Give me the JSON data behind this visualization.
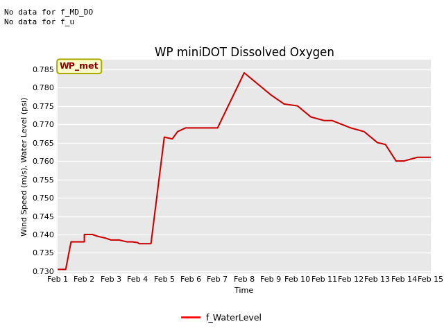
{
  "title": "WP miniDOT Dissolved Oxygen",
  "xlabel": "Time",
  "ylabel": "Wind Speed (m/s), Water Level (psi)",
  "no_data_text_1": "No data for f_MD_DO",
  "no_data_text_2": "No data for f_u",
  "legend_label": "f_WaterLevel",
  "legend_line_color": "#ff0000",
  "background_color": "#e8e8e8",
  "grid_color": "#ffffff",
  "wp_met_label": "WP_met",
  "wp_met_bg": "#ffffcc",
  "wp_met_border": "#aaaa00",
  "wp_met_text_color": "#880000",
  "x_values": [
    1.0,
    1.3,
    1.5,
    2.0,
    2.0,
    2.3,
    2.3,
    2.5,
    2.5,
    2.8,
    2.8,
    3.0,
    3.0,
    3.3,
    3.3,
    3.6,
    3.6,
    3.8,
    3.8,
    4.0,
    4.0,
    4.05,
    4.05,
    4.5,
    4.5,
    5.0,
    5.0,
    5.3,
    5.3,
    5.5,
    5.5,
    5.8,
    5.8,
    6.0,
    6.0,
    6.2,
    6.2,
    6.5,
    6.5,
    7.0,
    7.0,
    8.0,
    8.0,
    8.5,
    8.5,
    9.0,
    9.0,
    9.5,
    9.5,
    10.0,
    10.0,
    10.5,
    10.5,
    11.0,
    11.0,
    11.3,
    11.3,
    12.0,
    12.0,
    12.5,
    12.5,
    13.0,
    13.0,
    13.3,
    13.3,
    13.7,
    13.7,
    14.0,
    14.0,
    14.5,
    14.5,
    15.0
  ],
  "y_values": [
    0.7305,
    0.7305,
    0.738,
    0.738,
    0.74,
    0.74,
    0.74,
    0.7395,
    0.7395,
    0.739,
    0.739,
    0.7385,
    0.7385,
    0.7385,
    0.7385,
    0.738,
    0.738,
    0.738,
    0.738,
    0.7378,
    0.7378,
    0.7375,
    0.7375,
    0.7375,
    0.7375,
    0.7665,
    0.7665,
    0.766,
    0.766,
    0.768,
    0.768,
    0.769,
    0.769,
    0.769,
    0.769,
    0.769,
    0.769,
    0.769,
    0.769,
    0.769,
    0.769,
    0.784,
    0.784,
    0.781,
    0.781,
    0.778,
    0.778,
    0.7755,
    0.7755,
    0.775,
    0.775,
    0.772,
    0.772,
    0.771,
    0.771,
    0.771,
    0.771,
    0.769,
    0.769,
    0.768,
    0.768,
    0.765,
    0.765,
    0.7645,
    0.7645,
    0.76,
    0.76,
    0.76,
    0.76,
    0.761,
    0.761,
    0.761
  ],
  "line_color": "#cc0000",
  "ylim": [
    0.7295,
    0.7875
  ],
  "xlim": [
    1,
    15
  ],
  "yticks": [
    0.73,
    0.735,
    0.74,
    0.745,
    0.75,
    0.755,
    0.76,
    0.765,
    0.77,
    0.775,
    0.78,
    0.785
  ],
  "xtick_labels": [
    "Feb 1",
    "Feb 2",
    "Feb 3",
    "Feb 4",
    "Feb 5",
    "Feb 6",
    "Feb 7",
    "Feb 8",
    "Feb 9",
    "Feb 10",
    "Feb 11",
    "Feb 12",
    "Feb 13",
    "Feb 14",
    "Feb 15"
  ],
  "xtick_positions": [
    1,
    2,
    3,
    4,
    5,
    6,
    7,
    8,
    9,
    10,
    11,
    12,
    13,
    14,
    15
  ],
  "title_fontsize": 12,
  "axis_label_fontsize": 8,
  "tick_fontsize": 8,
  "nodata_fontsize": 8
}
